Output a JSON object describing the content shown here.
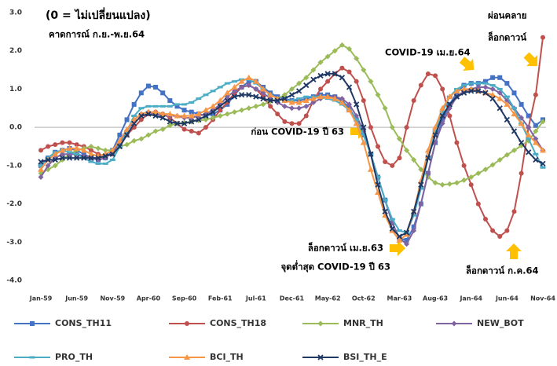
{
  "chart_data": {
    "type": "line",
    "title": "(0 = ไม่เปลี่ยนแปลง)",
    "subtitle": "คาดการณ์ ก.ย.-พ.ย.64",
    "annotations": [
      "COVID-19 เม.ย.64",
      "ผ่อนคลาย",
      "ล็อกดาวน์",
      "ก่อน COVID-19 ปี 63",
      "ล็อกดาวน์ เม.ย.63",
      "จุดต่ำสุด COVID-19 ปี 63",
      "ล็อกดาวน์ ก.ค.64"
    ],
    "categories": [
      "Jan-59",
      null,
      null,
      null,
      null,
      "Jun-59",
      null,
      null,
      null,
      null,
      "Nov-59",
      null,
      null,
      null,
      null,
      "Apr-60",
      null,
      null,
      null,
      null,
      "Sep-60",
      null,
      null,
      null,
      null,
      "Feb-61",
      null,
      null,
      null,
      null,
      "Jul-61",
      null,
      null,
      null,
      null,
      "Dec-61",
      null,
      null,
      null,
      null,
      "May-62",
      null,
      null,
      null,
      null,
      "Oct-62",
      null,
      null,
      null,
      null,
      "Mar-63",
      null,
      null,
      null,
      null,
      "Aug-63",
      null,
      null,
      null,
      null,
      "Jan-64",
      null,
      null,
      null,
      null,
      "Jun-64",
      null,
      null,
      null,
      null,
      "Nov-64"
    ],
    "ylim": [
      -4,
      3
    ],
    "yticks": [
      {
        "value": 3,
        "label": "3.0"
      },
      {
        "value": 2,
        "label": "2.0"
      },
      {
        "value": 1,
        "label": "1.0"
      },
      {
        "value": 0,
        "label": "0.0"
      },
      {
        "value": -1,
        "label": "-1.0"
      },
      {
        "value": -2,
        "label": "-2.0"
      },
      {
        "value": -3,
        "label": "-3.0"
      },
      {
        "value": -4,
        "label": "-4.0"
      }
    ],
    "grid": false,
    "series": [
      {
        "name": "CONS_TH11",
        "color": "#4472c4",
        "marker": "square",
        "values": [
          -1.0,
          -0.8,
          -0.65,
          -0.6,
          -0.55,
          -0.6,
          -0.7,
          -0.8,
          -0.85,
          -0.8,
          -0.6,
          -0.2,
          0.2,
          0.6,
          0.9,
          1.08,
          1.05,
          0.9,
          0.7,
          0.55,
          0.45,
          0.4,
          0.35,
          0.3,
          0.35,
          0.45,
          0.6,
          0.85,
          1.05,
          1.2,
          1.2,
          1.05,
          0.9,
          0.8,
          0.75,
          0.7,
          0.7,
          0.75,
          0.8,
          0.85,
          0.85,
          0.8,
          0.7,
          0.5,
          0.2,
          -0.2,
          -0.7,
          -1.3,
          -1.9,
          -2.5,
          -2.9,
          -2.95,
          -2.6,
          -2.0,
          -1.2,
          -0.4,
          0.2,
          0.6,
          0.9,
          1.1,
          1.15,
          1.15,
          1.2,
          1.3,
          1.3,
          1.15,
          0.9,
          0.6,
          0.3,
          0.05,
          0.2
        ]
      },
      {
        "name": "CONS_TH18",
        "color": "#c0504d",
        "marker": "circle",
        "values": [
          -0.6,
          -0.5,
          -0.45,
          -0.4,
          -0.4,
          -0.45,
          -0.5,
          -0.6,
          -0.7,
          -0.75,
          -0.7,
          -0.5,
          -0.2,
          0.0,
          0.2,
          0.35,
          0.4,
          0.35,
          0.25,
          0.1,
          -0.05,
          -0.1,
          -0.15,
          0.0,
          0.2,
          0.45,
          0.65,
          0.9,
          1.05,
          1.1,
          1.0,
          0.8,
          0.55,
          0.35,
          0.15,
          0.1,
          0.1,
          0.3,
          0.7,
          1.0,
          1.2,
          1.4,
          1.55,
          1.45,
          1.2,
          0.7,
          0.0,
          -0.5,
          -0.9,
          -1.0,
          -0.8,
          0.0,
          0.7,
          1.1,
          1.4,
          1.35,
          1.0,
          0.3,
          -0.4,
          -1.0,
          -1.5,
          -2.0,
          -2.4,
          -2.7,
          -2.85,
          -2.7,
          -2.2,
          -1.2,
          0.0,
          0.85,
          2.35
        ]
      },
      {
        "name": "MNR_TH",
        "color": "#9bbb59",
        "marker": "diamond",
        "values": [
          -1.2,
          -1.1,
          -1.0,
          -0.85,
          -0.7,
          -0.6,
          -0.55,
          -0.5,
          -0.55,
          -0.6,
          -0.6,
          -0.5,
          -0.45,
          -0.35,
          -0.3,
          -0.2,
          -0.1,
          -0.05,
          0.05,
          0.1,
          0.12,
          0.15,
          0.18,
          0.2,
          0.25,
          0.3,
          0.35,
          0.4,
          0.45,
          0.5,
          0.55,
          0.6,
          0.68,
          0.75,
          0.85,
          1.0,
          1.15,
          1.3,
          1.5,
          1.7,
          1.85,
          2.0,
          2.15,
          2.05,
          1.8,
          1.5,
          1.2,
          0.85,
          0.5,
          0.0,
          -0.3,
          -0.6,
          -0.85,
          -1.1,
          -1.3,
          -1.45,
          -1.5,
          -1.48,
          -1.45,
          -1.38,
          -1.3,
          -1.2,
          -1.1,
          -0.98,
          -0.85,
          -0.72,
          -0.6,
          -0.48,
          -0.35,
          -0.1,
          0.15
        ]
      },
      {
        "name": "NEW_BOT",
        "color": "#8064a2",
        "marker": "diamond",
        "values": [
          -1.3,
          -1.0,
          -0.8,
          -0.7,
          -0.7,
          -0.7,
          -0.75,
          -0.8,
          -0.85,
          -0.8,
          -0.65,
          -0.4,
          -0.1,
          0.2,
          0.35,
          0.4,
          0.35,
          0.3,
          0.3,
          0.3,
          0.25,
          0.25,
          0.3,
          0.35,
          0.45,
          0.6,
          0.8,
          0.95,
          1.05,
          1.1,
          1.0,
          0.9,
          0.75,
          0.65,
          0.55,
          0.5,
          0.5,
          0.55,
          0.65,
          0.75,
          0.8,
          0.8,
          0.75,
          0.6,
          0.3,
          -0.1,
          -0.7,
          -1.3,
          -1.9,
          -2.5,
          -2.9,
          -3.05,
          -2.7,
          -2.0,
          -1.2,
          -0.4,
          0.1,
          0.5,
          0.8,
          0.95,
          1.0,
          1.05,
          1.05,
          1.0,
          0.9,
          0.7,
          0.5,
          0.25,
          0.0,
          -0.3,
          -0.6
        ]
      },
      {
        "name": "PRO_TH",
        "color": "#4bacc6",
        "marker": "dash",
        "values": [
          -1.0,
          -0.8,
          -0.65,
          -0.6,
          -0.65,
          -0.7,
          -0.8,
          -0.9,
          -0.95,
          -0.95,
          -0.85,
          -0.5,
          -0.1,
          0.3,
          0.5,
          0.55,
          0.55,
          0.55,
          0.55,
          0.6,
          0.6,
          0.65,
          0.75,
          0.85,
          0.95,
          1.05,
          1.15,
          1.2,
          1.25,
          1.25,
          1.15,
          1.0,
          0.85,
          0.75,
          0.7,
          0.7,
          0.75,
          0.8,
          0.8,
          0.8,
          0.75,
          0.7,
          0.6,
          0.45,
          0.2,
          -0.2,
          -0.7,
          -1.3,
          -1.9,
          -2.4,
          -2.7,
          -2.75,
          -2.3,
          -1.6,
          -0.8,
          -0.1,
          0.4,
          0.8,
          1.0,
          1.1,
          1.15,
          1.15,
          1.15,
          1.1,
          1.0,
          0.8,
          0.5,
          0.1,
          -0.3,
          -0.7,
          -1.05
        ]
      },
      {
        "name": "BCI_TH",
        "color": "#f79646",
        "marker": "triangle",
        "values": [
          -1.1,
          -0.85,
          -0.7,
          -0.6,
          -0.55,
          -0.55,
          -0.6,
          -0.7,
          -0.75,
          -0.7,
          -0.6,
          -0.35,
          -0.05,
          0.2,
          0.35,
          0.4,
          0.4,
          0.35,
          0.35,
          0.3,
          0.3,
          0.3,
          0.35,
          0.45,
          0.55,
          0.7,
          0.9,
          1.05,
          1.2,
          1.3,
          1.2,
          1.0,
          0.85,
          0.75,
          0.7,
          0.65,
          0.65,
          0.7,
          0.75,
          0.8,
          0.8,
          0.75,
          0.65,
          0.45,
          0.1,
          -0.4,
          -1.1,
          -1.7,
          -2.3,
          -2.7,
          -2.95,
          -2.8,
          -2.2,
          -1.4,
          -0.6,
          0.0,
          0.5,
          0.8,
          0.95,
          1.0,
          1.0,
          0.95,
          0.9,
          0.85,
          0.75,
          0.6,
          0.35,
          0.1,
          -0.2,
          -0.4,
          -0.6
        ]
      },
      {
        "name": "BSI_TH_E",
        "color": "#1f3864",
        "marker": "x",
        "values": [
          -0.9,
          -0.85,
          -0.85,
          -0.8,
          -0.8,
          -0.8,
          -0.8,
          -0.8,
          -0.8,
          -0.75,
          -0.7,
          -0.5,
          -0.2,
          0.1,
          0.3,
          0.35,
          0.3,
          0.25,
          0.15,
          0.1,
          0.1,
          0.15,
          0.2,
          0.3,
          0.4,
          0.55,
          0.7,
          0.8,
          0.85,
          0.85,
          0.8,
          0.75,
          0.7,
          0.7,
          0.75,
          0.85,
          0.95,
          1.1,
          1.25,
          1.35,
          1.4,
          1.4,
          1.3,
          1.05,
          0.6,
          0.0,
          -0.7,
          -1.5,
          -2.2,
          -2.65,
          -2.85,
          -2.75,
          -2.2,
          -1.5,
          -0.8,
          -0.2,
          0.3,
          0.6,
          0.8,
          0.9,
          0.95,
          0.95,
          0.9,
          0.75,
          0.5,
          0.2,
          -0.1,
          -0.4,
          -0.65,
          -0.85,
          -0.95
        ]
      }
    ]
  }
}
